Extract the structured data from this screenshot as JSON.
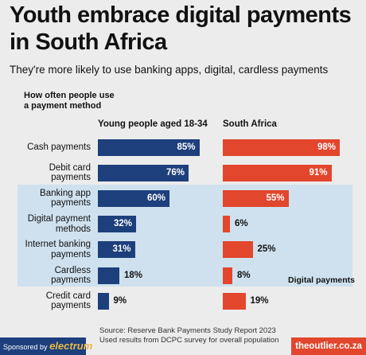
{
  "chart_data": {
    "type": "bar",
    "orientation": "horizontal",
    "title": "Youth embrace digital payments in South Africa",
    "subtitle": "They're more likely to use banking apps, digital, cardless payments",
    "category_axis_label": "How often people use a payment method",
    "categories": [
      "Cash payments",
      "Debit card payments",
      "Banking app payments",
      "Digital payment methods",
      "Internet banking payments",
      "Cardless payments",
      "Credit card payments"
    ],
    "xlim": [
      0,
      100
    ],
    "series": [
      {
        "name": "Young people aged 18-34",
        "color": "#1d3f7c",
        "values": [
          85,
          76,
          60,
          32,
          31,
          18,
          9
        ],
        "value_labels": [
          "85%",
          "76%",
          "60%",
          "32%",
          "31%",
          "18%",
          "9%"
        ]
      },
      {
        "name": "South Africa",
        "color": "#e2462d",
        "values": [
          98,
          91,
          55,
          6,
          25,
          8,
          19
        ],
        "value_labels": [
          "98%",
          "91%",
          "55%",
          "6%",
          "25%",
          "8%",
          "19%"
        ]
      }
    ],
    "highlight": {
      "label": "Digital payments",
      "color": "#cfe1ef"
    },
    "source": [
      "Source: Reserve Bank Payments Study Report 2023",
      "Used results from DCPC survey for overall population"
    ],
    "sponsor": "Sponsored by",
    "sponsor_brand": "electrum",
    "site": "theoutlier.co.za"
  }
}
